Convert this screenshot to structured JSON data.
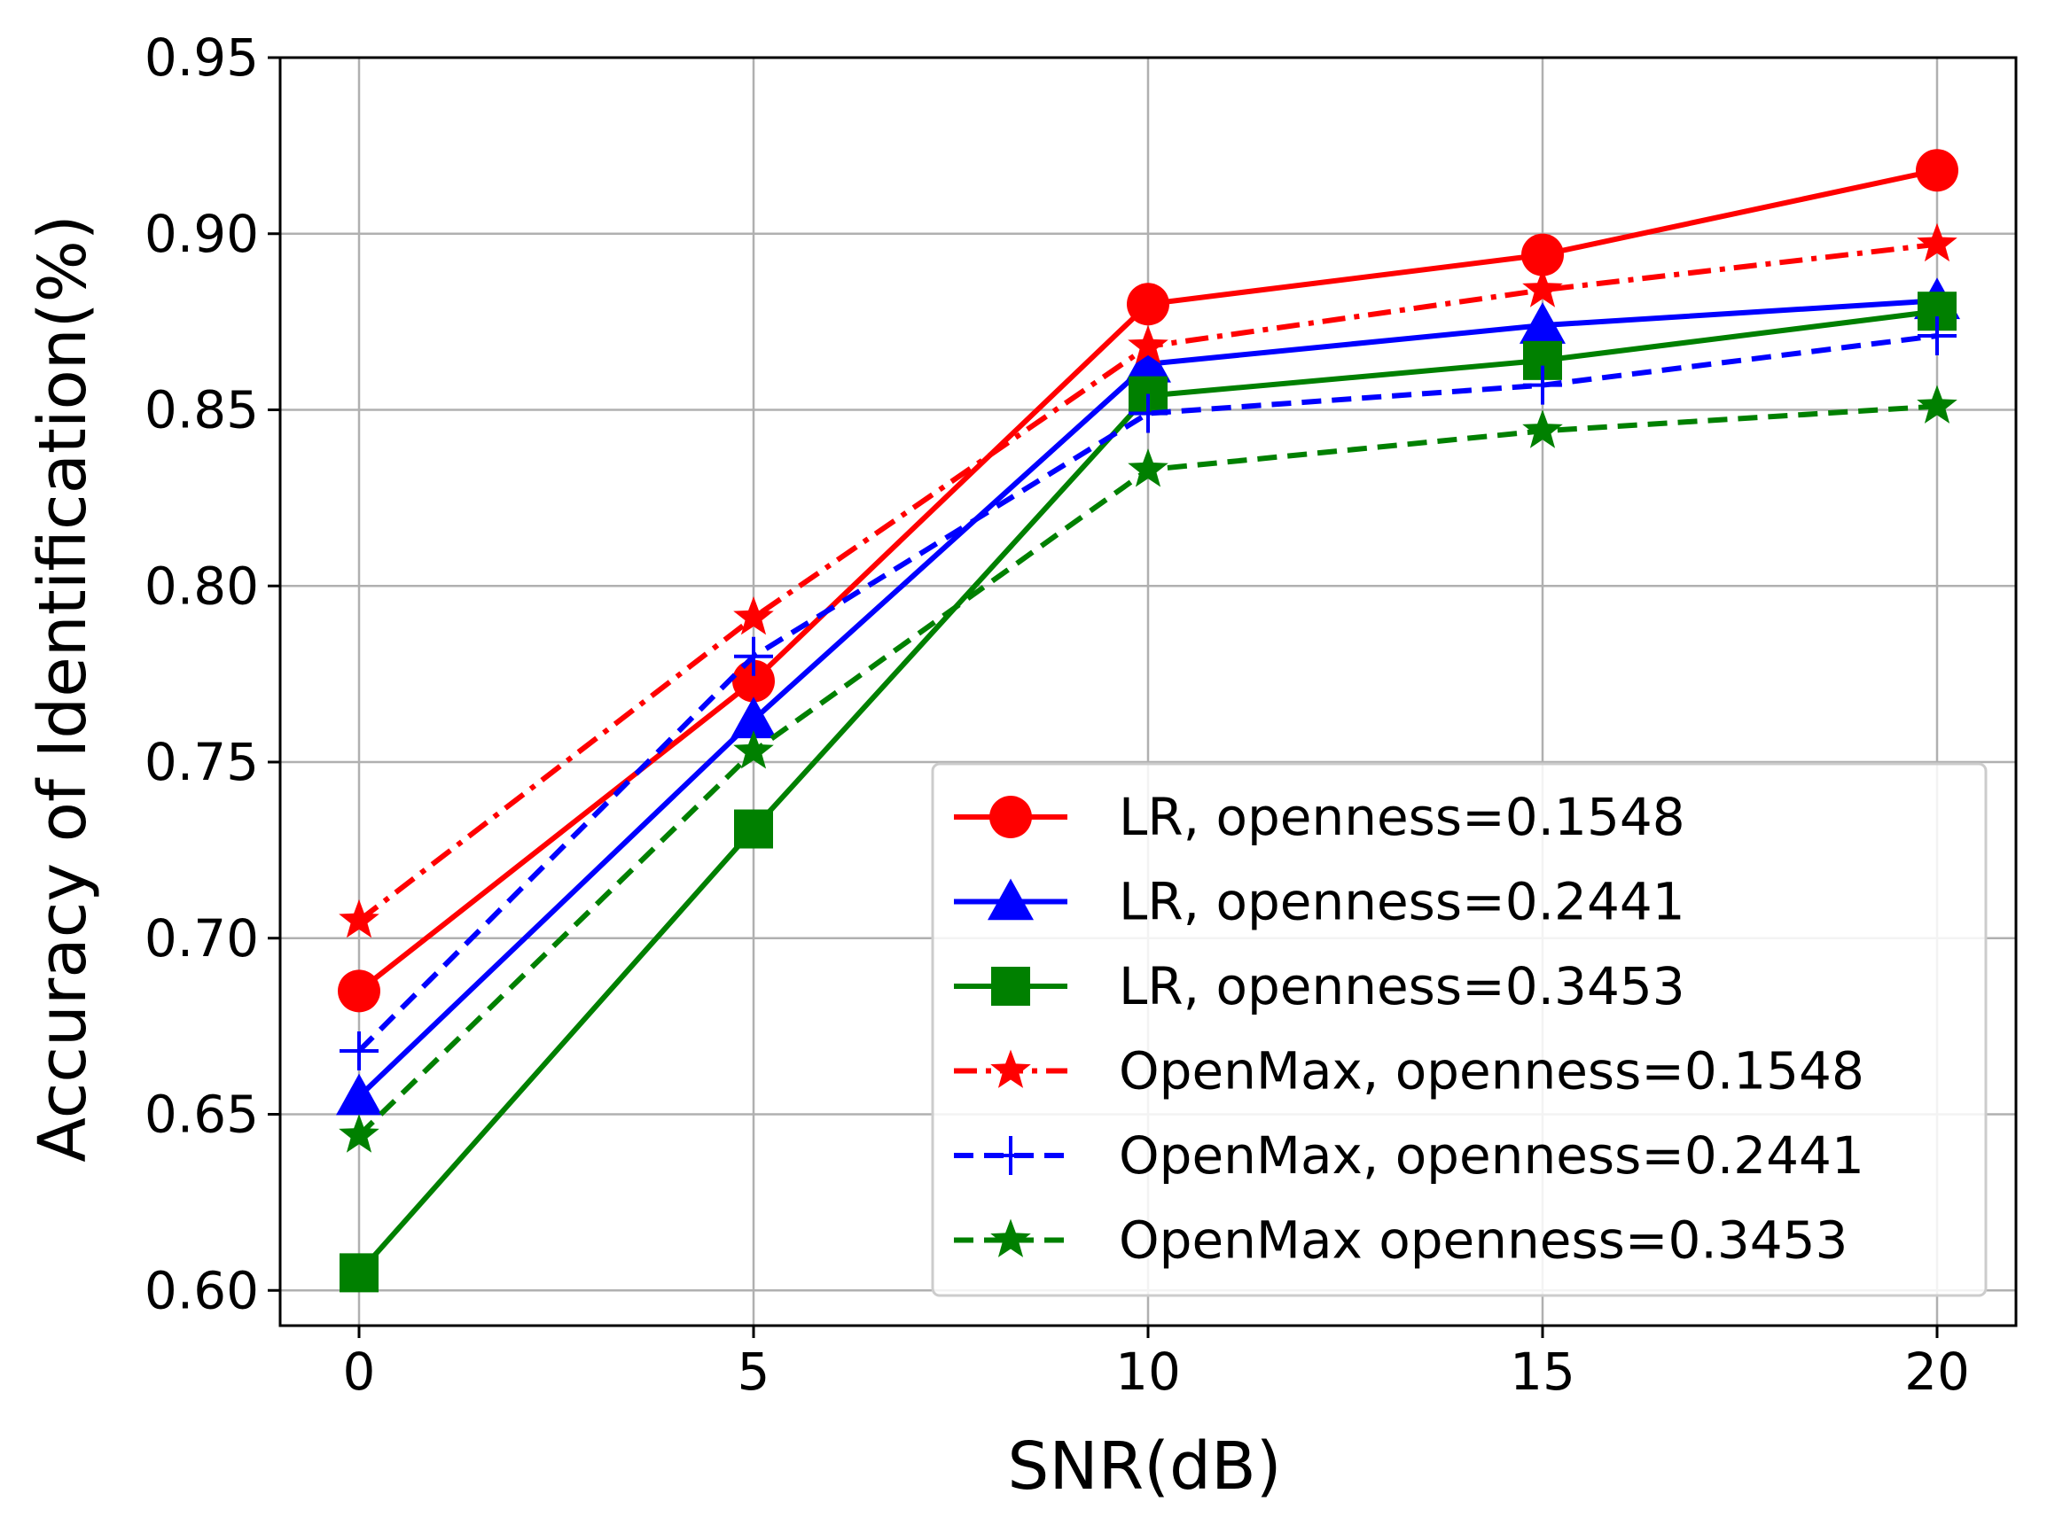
{
  "chart_data": {
    "type": "line",
    "title": "",
    "xlabel": "SNR(dB)",
    "ylabel": "Accuracy of Identification(%)",
    "x": [
      0,
      5,
      10,
      15,
      20
    ],
    "xlim": [
      -1,
      21
    ],
    "ylim": [
      0.59,
      0.95
    ],
    "xticks": [
      0,
      5,
      10,
      15,
      20
    ],
    "xtick_labels": [
      "0",
      "5",
      "10",
      "15",
      "20"
    ],
    "yticks": [
      0.6,
      0.65,
      0.7,
      0.75,
      0.8,
      0.85,
      0.9,
      0.95
    ],
    "ytick_labels": [
      "0.60",
      "0.65",
      "0.70",
      "0.75",
      "0.80",
      "0.85",
      "0.90",
      "0.95"
    ],
    "grid": true,
    "legend_position": "lower-right",
    "series": [
      {
        "name": "LR, openness=0.1548",
        "color": "#ff0000",
        "linestyle": "solid",
        "marker": "circle",
        "values": [
          0.685,
          0.773,
          0.88,
          0.894,
          0.918
        ]
      },
      {
        "name": "LR, openness=0.2441",
        "color": "#0000ff",
        "linestyle": "solid",
        "marker": "triangle",
        "values": [
          0.655,
          0.762,
          0.863,
          0.874,
          0.881
        ]
      },
      {
        "name": "LR, openness=0.3453",
        "color": "#008000",
        "linestyle": "solid",
        "marker": "square",
        "values": [
          0.605,
          0.731,
          0.854,
          0.864,
          0.878
        ]
      },
      {
        "name": "OpenMax, openness=0.1548",
        "color": "#ff0000",
        "linestyle": "dashdot",
        "marker": "star",
        "values": [
          0.705,
          0.791,
          0.868,
          0.884,
          0.897
        ]
      },
      {
        "name": "OpenMax, openness=0.2441",
        "color": "#0000ff",
        "linestyle": "dashed",
        "marker": "plus",
        "values": [
          0.668,
          0.78,
          0.849,
          0.857,
          0.871
        ]
      },
      {
        "name": "OpenMax openness=0.3453",
        "color": "#008000",
        "linestyle": "dashed",
        "marker": "star",
        "values": [
          0.644,
          0.753,
          0.833,
          0.844,
          0.851
        ]
      }
    ]
  }
}
